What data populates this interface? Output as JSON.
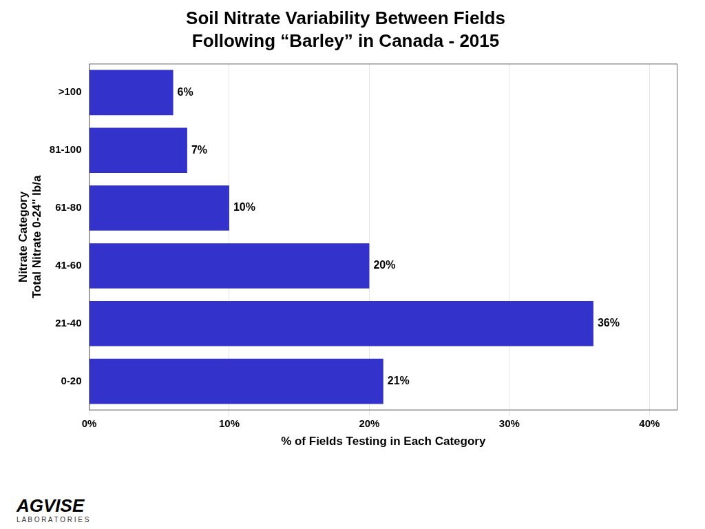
{
  "chart_data": {
    "type": "bar",
    "orientation": "horizontal",
    "title": "Soil Nitrate Variability Between Fields",
    "subtitle": "Following “Barley” in Canada - 2015",
    "categories": [
      "0-20",
      "21-40",
      "41-60",
      "61-80",
      "81-100",
      ">100"
    ],
    "values": [
      21,
      36,
      20,
      10,
      7,
      6
    ],
    "value_labels": [
      "21%",
      "36%",
      "20%",
      "10%",
      "7%",
      "6%"
    ],
    "data_labels": true,
    "color": "#3333CC",
    "xlabel": "% of Fields Testing in Each Category",
    "ylabel": [
      "Nitrate Category",
      "Total Nitrate 0-24\" lb/a"
    ],
    "xlim": [
      0,
      42
    ],
    "xticks": [
      {
        "value": 0,
        "label": "0%"
      },
      {
        "value": 10,
        "label": "10%"
      },
      {
        "value": 20,
        "label": "20%"
      },
      {
        "value": 30,
        "label": "30%"
      },
      {
        "value": 40,
        "label": "40%"
      }
    ],
    "grid": true,
    "annotations": [
      "AGVISE",
      "L A B O R A T O R I E S"
    ]
  }
}
